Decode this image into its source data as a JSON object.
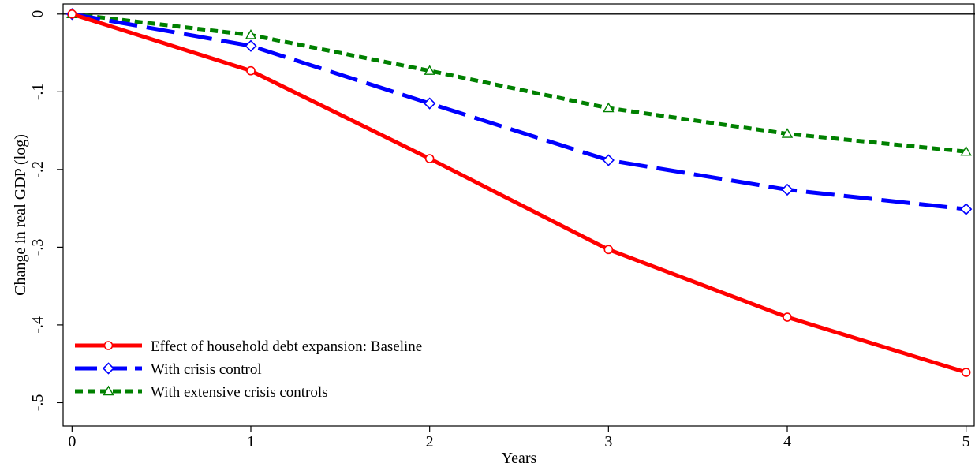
{
  "chart_data": {
    "type": "line",
    "title": "",
    "xlabel": "Years",
    "ylabel": "Change in real GDP (log)",
    "x": [
      0,
      1,
      2,
      3,
      4,
      5
    ],
    "xlim": [
      -0.05,
      5.05
    ],
    "ylim": [
      -0.53,
      0.013
    ],
    "xticks": [
      0,
      1,
      2,
      3,
      4,
      5
    ],
    "xtick_labels": [
      "0",
      "1",
      "2",
      "3",
      "4",
      "5"
    ],
    "yticks": [
      0,
      -0.1,
      -0.2,
      -0.3,
      -0.4,
      -0.5
    ],
    "ytick_labels": [
      "0",
      "-.1",
      "-.2",
      "-.3",
      "-.4",
      "-.5"
    ],
    "reference_line_y": 0,
    "grid": false,
    "legend_position": "bottom-left",
    "series": [
      {
        "name": "Effect of household debt expansion: Baseline",
        "values": [
          0,
          -0.073,
          -0.186,
          -0.303,
          -0.39,
          -0.461
        ],
        "color": "#ff0000",
        "line_style": "solid",
        "marker": "circle"
      },
      {
        "name": "With crisis control",
        "values": [
          0,
          -0.041,
          -0.115,
          -0.188,
          -0.226,
          -0.251
        ],
        "color": "#0000ff",
        "line_style": "long-dash",
        "marker": "diamond"
      },
      {
        "name": "With extensive crisis controls",
        "values": [
          0,
          -0.027,
          -0.073,
          -0.121,
          -0.154,
          -0.177
        ],
        "color": "#008000",
        "line_style": "short-dash",
        "marker": "triangle"
      }
    ]
  }
}
